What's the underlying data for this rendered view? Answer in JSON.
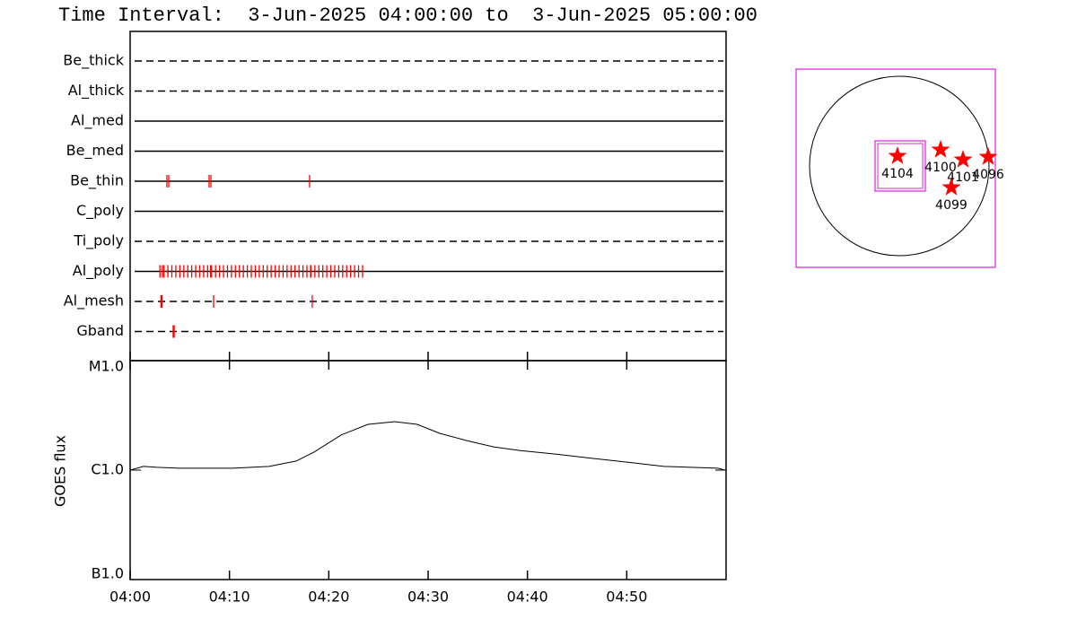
{
  "chart_data": [
    {
      "type": "timeline",
      "title": "Time Interval:  3-Jun-2025 04:00:00 to  3-Jun-2025 05:00:00",
      "xlim": [
        "04:00:00",
        "05:00:00"
      ],
      "color": "#ff0000",
      "series": [
        {
          "name": "Be_thick",
          "line": "dashed",
          "events": []
        },
        {
          "name": "Al_thick",
          "line": "dashed",
          "events": []
        },
        {
          "name": "Al_med",
          "line": "solid",
          "events": []
        },
        {
          "name": "Be_med",
          "line": "solid",
          "events": []
        },
        {
          "name": "Be_thin",
          "line": "solid",
          "events": [
            "04:03:42",
            "04:03:53",
            "04:07:57",
            "04:08:08",
            "04:18:04"
          ]
        },
        {
          "name": "C_poly",
          "line": "solid",
          "events": []
        },
        {
          "name": "Ti_poly",
          "line": "dashed",
          "events": []
        },
        {
          "name": "Al_poly",
          "line": "solid",
          "events": [
            "04:03:00",
            "04:03:15",
            "04:03:24",
            "04:03:48",
            "04:04:12",
            "04:04:36",
            "04:05:00",
            "04:05:24",
            "04:05:48",
            "04:06:12",
            "04:06:36",
            "04:07:00",
            "04:07:24",
            "04:07:48",
            "04:08:06",
            "04:08:12",
            "04:08:36",
            "04:09:00",
            "04:09:24",
            "04:09:48",
            "04:10:12",
            "04:10:36",
            "04:11:00",
            "04:11:24",
            "04:11:48",
            "04:12:12",
            "04:12:36",
            "04:13:00",
            "04:13:24",
            "04:13:48",
            "04:14:12",
            "04:14:36",
            "04:15:00",
            "04:15:24",
            "04:15:48",
            "04:16:12",
            "04:16:36",
            "04:17:00",
            "04:17:24",
            "04:17:48",
            "04:18:10",
            "04:18:12",
            "04:18:36",
            "04:19:00",
            "04:19:24",
            "04:19:48",
            "04:20:12",
            "04:20:36",
            "04:21:00",
            "04:21:24",
            "04:21:48",
            "04:22:12",
            "04:22:36",
            "04:23:00",
            "04:23:24"
          ]
        },
        {
          "name": "Al_mesh",
          "line": "dashed",
          "events": [
            "04:03:06",
            "04:03:12",
            "04:08:24",
            "04:18:20"
          ]
        },
        {
          "name": "Gband",
          "line": "dashed",
          "events": [
            "04:04:20",
            "04:04:26"
          ]
        }
      ]
    },
    {
      "type": "line",
      "ylabel": "GOES flux",
      "ylog": true,
      "ylim": [
        1e-07,
        1e-05
      ],
      "yticks": [
        {
          "value": 1e-07,
          "label": "B1.0"
        },
        {
          "value": 1e-06,
          "label": "C1.0"
        },
        {
          "value": 1e-05,
          "label": "M1.0"
        }
      ],
      "xlim": [
        "04:00:00",
        "05:00:00"
      ],
      "xticks": [
        {
          "value": "04:00:00",
          "label": "04:00"
        },
        {
          "value": "04:10:00",
          "label": "04:10"
        },
        {
          "value": "04:20:00",
          "label": "04:20"
        },
        {
          "value": "04:30:00",
          "label": "04:30"
        },
        {
          "value": "04:40:00",
          "label": "04:40"
        },
        {
          "value": "04:50:00",
          "label": "04:50"
        }
      ],
      "color": "#000000",
      "x": [
        "04:00:00",
        "04:01:21",
        "04:02:43",
        "04:04:58",
        "04:10:23",
        "04:14:00",
        "04:16:43",
        "04:18:31",
        "04:21:14",
        "04:23:56",
        "04:26:39",
        "04:28:54",
        "04:31:10",
        "04:33:53",
        "04:36:35",
        "04:39:18",
        "04:42:54",
        "04:46:31",
        "04:50:08",
        "04:53:45",
        "04:56:28",
        "04:59:10",
        "04:59:54"
      ],
      "values": [
        1e-06,
        1.08e-06,
        1.06e-06,
        1.04e-06,
        1.04e-06,
        1.08e-06,
        1.21e-06,
        1.46e-06,
        2.09e-06,
        2.62e-06,
        2.77e-06,
        2.62e-06,
        2.17e-06,
        1.86e-06,
        1.63e-06,
        1.51e-06,
        1.4e-06,
        1.28e-06,
        1.18e-06,
        1.08e-06,
        1.06e-06,
        1.04e-06,
        1e-06
      ]
    },
    {
      "type": "map",
      "color": "#ff0000",
      "regions": [
        {
          "label": "4104"
        },
        {
          "label": "4100"
        },
        {
          "label": "4101"
        },
        {
          "label": "4096"
        },
        {
          "label": "4099"
        }
      ]
    }
  ]
}
